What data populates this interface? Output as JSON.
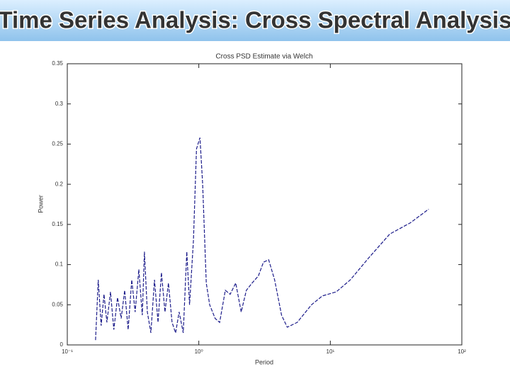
{
  "header": {
    "title": "Time Series Analysis: Cross Spectral Analysis"
  },
  "chart_data": {
    "type": "line",
    "title": "Cross PSD Estimate via Welch",
    "xlabel": "Period",
    "ylabel": "Power",
    "xscale": "log",
    "color": "#1c1c8a",
    "x": [
      0.164,
      0.172,
      0.181,
      0.19,
      0.2,
      0.213,
      0.226,
      0.241,
      0.257,
      0.273,
      0.29,
      0.309,
      0.328,
      0.35,
      0.372,
      0.386,
      0.406,
      0.432,
      0.46,
      0.49,
      0.52,
      0.553,
      0.588,
      0.626,
      0.666,
      0.709,
      0.762,
      0.81,
      0.85,
      0.91,
      0.96,
      1.02,
      1.07,
      1.14,
      1.21,
      1.33,
      1.44,
      1.59,
      1.73,
      1.91,
      2.1,
      2.3,
      2.54,
      2.84,
      3.1,
      3.4,
      3.77,
      4.26,
      4.7,
      5.6,
      7.2,
      8.7,
      11.1,
      14.2,
      19.5,
      28.3,
      40.6,
      56.0
    ],
    "values": [
      0.006,
      0.081,
      0.024,
      0.063,
      0.028,
      0.066,
      0.019,
      0.059,
      0.033,
      0.068,
      0.019,
      0.081,
      0.041,
      0.094,
      0.037,
      0.116,
      0.041,
      0.015,
      0.081,
      0.028,
      0.09,
      0.041,
      0.077,
      0.028,
      0.015,
      0.041,
      0.015,
      0.116,
      0.05,
      0.13,
      0.244,
      0.258,
      0.2,
      0.077,
      0.05,
      0.033,
      0.028,
      0.068,
      0.063,
      0.077,
      0.041,
      0.068,
      0.077,
      0.086,
      0.103,
      0.106,
      0.081,
      0.037,
      0.022,
      0.028,
      0.05,
      0.061,
      0.066,
      0.081,
      0.108,
      0.138,
      0.152,
      0.169
    ],
    "xlim": [
      0.1,
      100
    ],
    "xticks": [
      {
        "value": 0.1,
        "label": "10⁻¹"
      },
      {
        "value": 1,
        "label": "10⁰"
      },
      {
        "value": 10,
        "label": "10¹"
      },
      {
        "value": 100,
        "label": "10²"
      }
    ],
    "ylim": [
      0,
      0.35
    ],
    "yticks": [
      0,
      0.05,
      0.1,
      0.15,
      0.2,
      0.25,
      0.3,
      0.35
    ]
  }
}
